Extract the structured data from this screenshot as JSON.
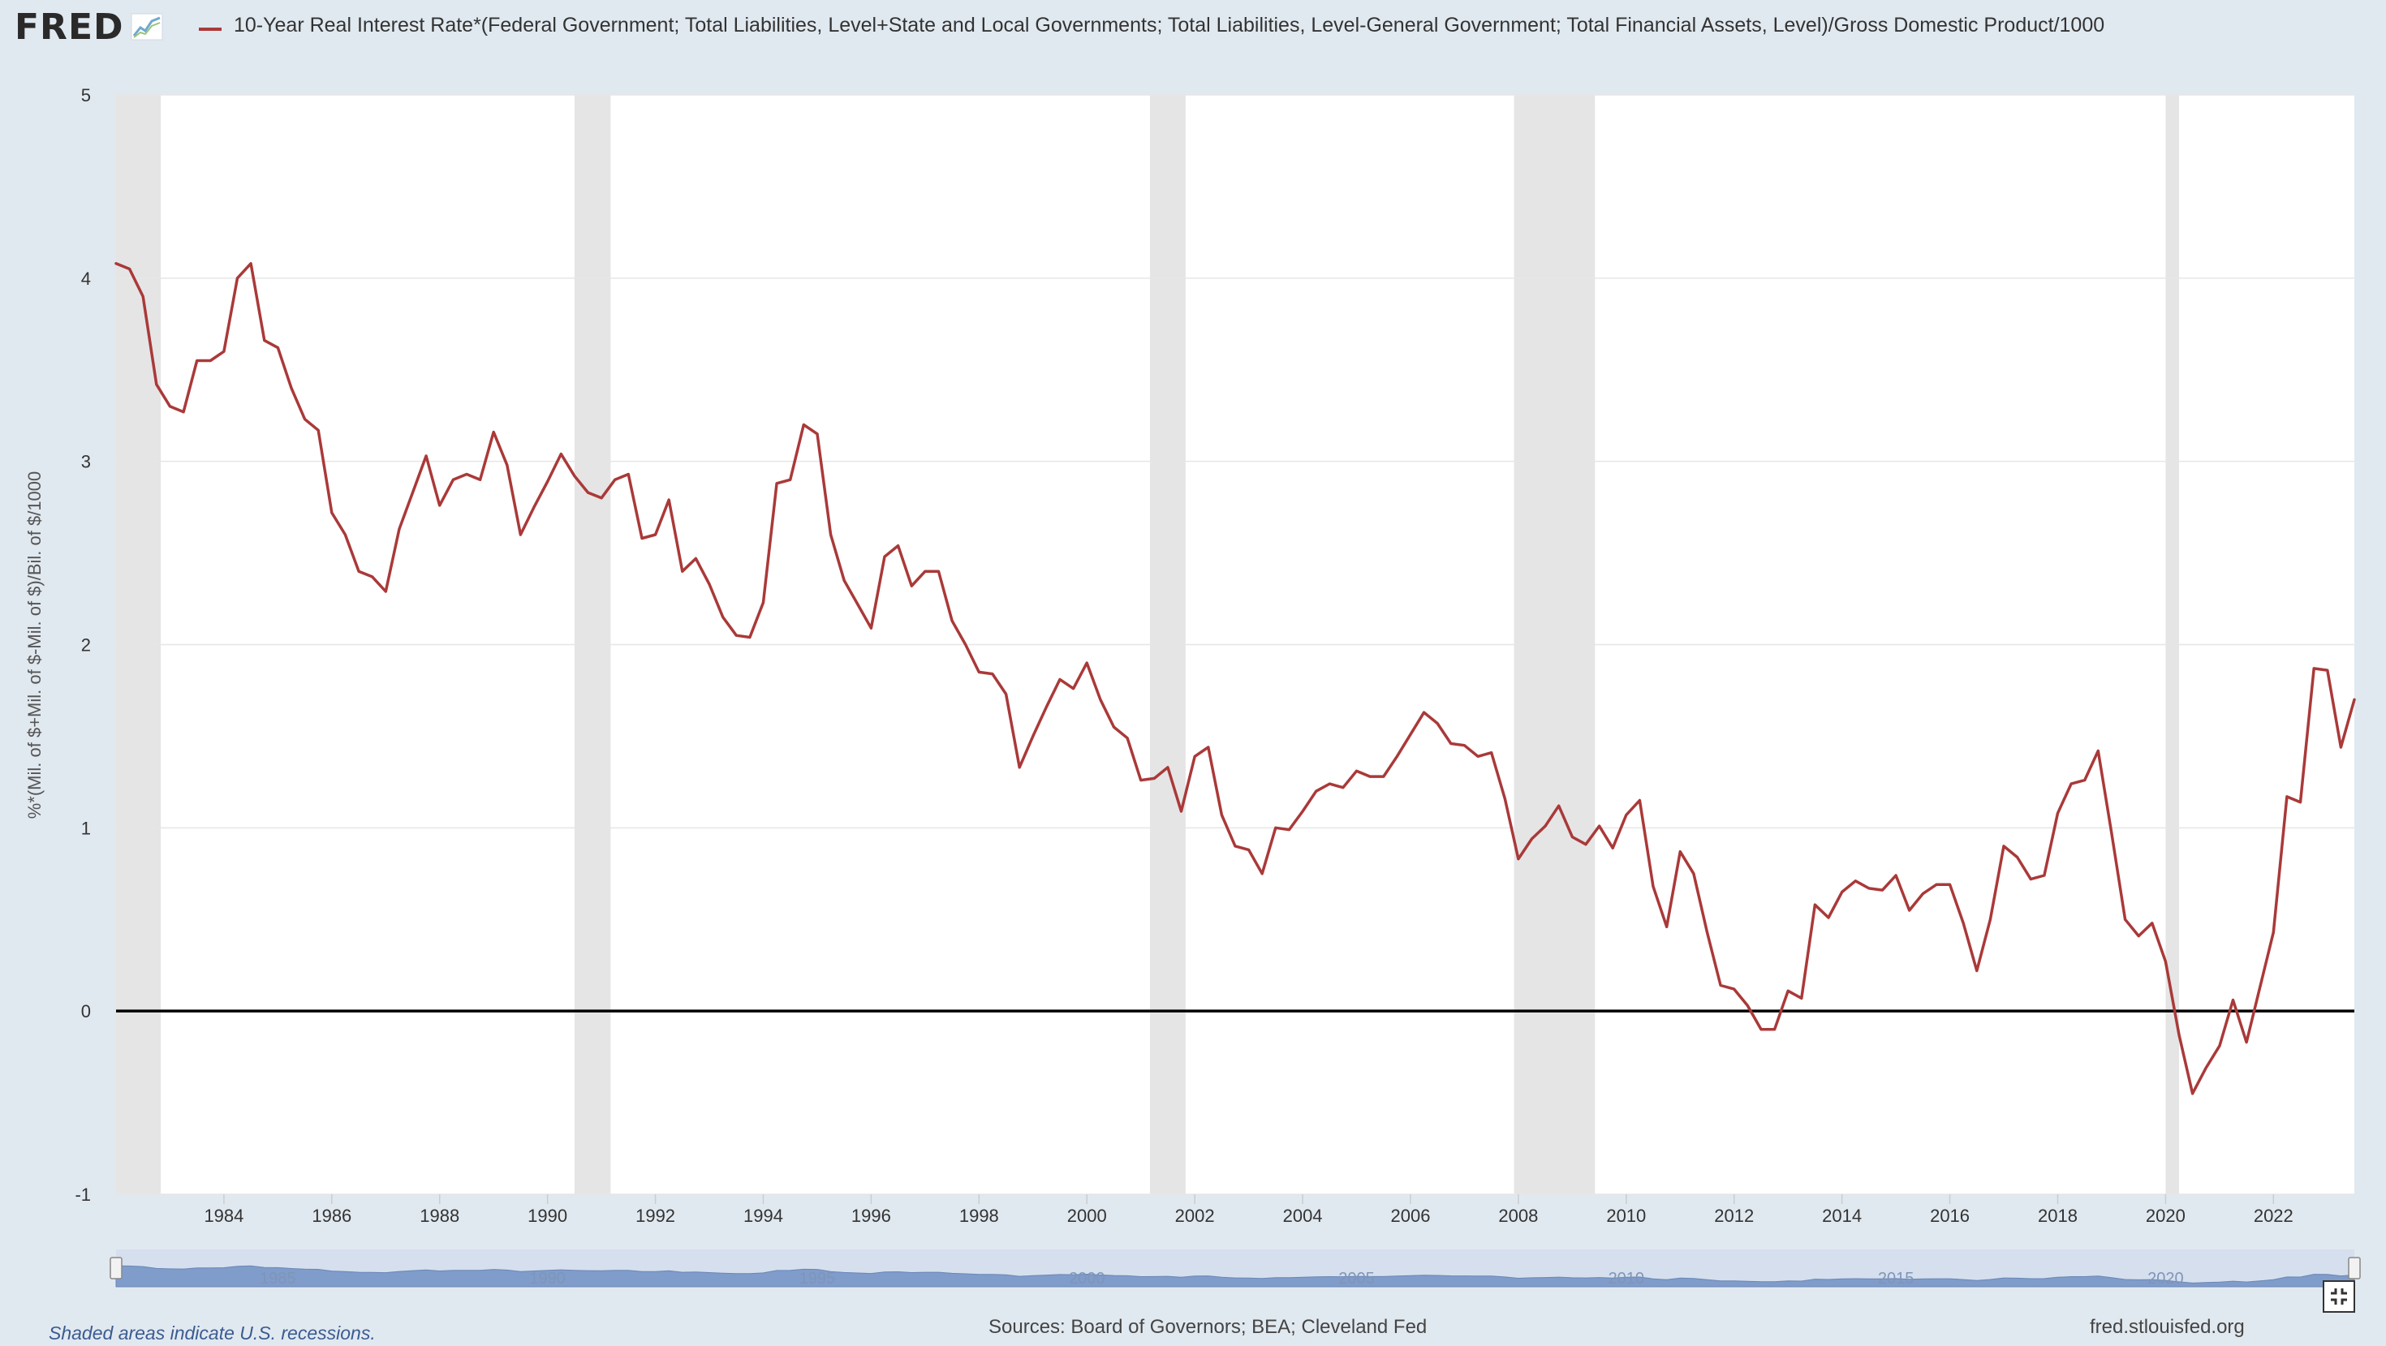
{
  "header": {
    "logo_text": "FRED",
    "logo_icon": "fred-chart-icon",
    "series_title": "10-Year Real Interest Rate*(Federal Government; Total Liabilities, Level+State and Local Governments; Total Liabilities, Level-General Government; Total Financial Assets, Level)/Gross Domestic Product/1000"
  },
  "footer": {
    "recession_note": "Shaded areas indicate U.S. recessions.",
    "sources": "Sources: Board of Governors; BEA; Cleveland Fed",
    "site": "fred.stlouisfed.org"
  },
  "navigator": {
    "year_labels": [
      "1985",
      "1990",
      "1995",
      "2000",
      "2005",
      "2010",
      "2015",
      "2020"
    ]
  },
  "fullscreen_icon": "fullscreen-icon",
  "colors": {
    "series_line": "#aa3939",
    "recession_shading": "#e5e5e5",
    "page_background": "#e1e9f0",
    "plot_background": "#ffffff",
    "navigator_fill": "#7f9ccb",
    "zero_line": "#000000"
  },
  "chart_data": {
    "type": "line",
    "title": "10-Year Real Interest Rate*(Federal Government; Total Liabilities, Level+State and Local Governments; Total Liabilities, Level-General Government; Total Financial Assets, Level)/Gross Domestic Product/1000",
    "ylabel": "%*(Mil. of $+Mil. of $-Mil. of $)/Bil. of $/1000",
    "xlabel": "",
    "xlim": [
      1982.0,
      2023.5
    ],
    "ylim": [
      -1,
      5
    ],
    "y_ticks": [
      -1,
      0,
      1,
      2,
      3,
      4,
      5
    ],
    "x_ticks": [
      1984,
      1986,
      1988,
      1990,
      1992,
      1994,
      1996,
      1998,
      2000,
      2002,
      2004,
      2006,
      2008,
      2010,
      2012,
      2014,
      2016,
      2018,
      2020,
      2022
    ],
    "grid": "horizontal",
    "recessions": [
      [
        1982.0,
        1982.83
      ],
      [
        1990.5,
        1991.17
      ],
      [
        2001.17,
        2001.83
      ],
      [
        2007.92,
        2009.42
      ],
      [
        2020.0,
        2020.25
      ]
    ],
    "series": [
      {
        "name": "10-Year Real Interest Rate*(Federal Government; Total Liabilities, Level+State and Local Governments; Total Liabilities, Level-General Government; Total Financial Assets, Level)/Gross Domestic Product/1000",
        "x": [
          1982.0,
          1982.25,
          1982.5,
          1982.75,
          1983.0,
          1983.25,
          1983.5,
          1983.75,
          1984.0,
          1984.25,
          1984.5,
          1984.75,
          1985.0,
          1985.25,
          1985.5,
          1985.75,
          1986.0,
          1986.25,
          1986.5,
          1986.75,
          1987.0,
          1987.25,
          1987.5,
          1987.75,
          1988.0,
          1988.25,
          1988.5,
          1988.75,
          1989.0,
          1989.25,
          1989.5,
          1989.75,
          1990.0,
          1990.25,
          1990.5,
          1990.75,
          1991.0,
          1991.25,
          1991.5,
          1991.75,
          1992.0,
          1992.25,
          1992.5,
          1992.75,
          1993.0,
          1993.25,
          1993.5,
          1993.75,
          1994.0,
          1994.25,
          1994.5,
          1994.75,
          1995.0,
          1995.25,
          1995.5,
          1995.75,
          1996.0,
          1996.25,
          1996.5,
          1996.75,
          1997.0,
          1997.25,
          1997.5,
          1997.75,
          1998.0,
          1998.25,
          1998.5,
          1998.75,
          1999.0,
          1999.25,
          1999.5,
          1999.75,
          2000.0,
          2000.25,
          2000.5,
          2000.75,
          2001.0,
          2001.25,
          2001.5,
          2001.75,
          2002.0,
          2002.25,
          2002.5,
          2002.75,
          2003.0,
          2003.25,
          2003.5,
          2003.75,
          2004.0,
          2004.25,
          2004.5,
          2004.75,
          2005.0,
          2005.25,
          2005.5,
          2005.75,
          2006.0,
          2006.25,
          2006.5,
          2006.75,
          2007.0,
          2007.25,
          2007.5,
          2007.75,
          2008.0,
          2008.25,
          2008.5,
          2008.75,
          2009.0,
          2009.25,
          2009.5,
          2009.75,
          2010.0,
          2010.25,
          2010.5,
          2010.75,
          2011.0,
          2011.25,
          2011.5,
          2011.75,
          2012.0,
          2012.25,
          2012.5,
          2012.75,
          2013.0,
          2013.25,
          2013.5,
          2013.75,
          2014.0,
          2014.25,
          2014.5,
          2014.75,
          2015.0,
          2015.25,
          2015.5,
          2015.75,
          2016.0,
          2016.25,
          2016.5,
          2016.75,
          2017.0,
          2017.25,
          2017.5,
          2017.75,
          2018.0,
          2018.25,
          2018.5,
          2018.75,
          2019.0,
          2019.25,
          2019.5,
          2019.75,
          2020.0,
          2020.25,
          2020.5,
          2020.75,
          2021.0,
          2021.25,
          2021.5,
          2021.75,
          2022.0,
          2022.25,
          2022.5,
          2022.75,
          2023.0,
          2023.25,
          2023.5
        ],
        "values": [
          4.08,
          4.05,
          3.9,
          3.42,
          3.3,
          3.27,
          3.55,
          3.55,
          3.6,
          4.0,
          4.08,
          3.66,
          3.62,
          3.4,
          3.23,
          3.17,
          2.72,
          2.6,
          2.4,
          2.37,
          2.29,
          2.63,
          2.83,
          3.03,
          2.76,
          2.9,
          2.93,
          2.9,
          3.16,
          2.98,
          2.6,
          2.75,
          2.89,
          3.04,
          2.92,
          2.83,
          2.8,
          2.9,
          2.93,
          2.58,
          2.6,
          2.79,
          2.4,
          2.47,
          2.33,
          2.15,
          2.05,
          2.04,
          2.23,
          2.88,
          2.9,
          3.2,
          3.15,
          2.6,
          2.35,
          2.22,
          2.09,
          2.48,
          2.54,
          2.32,
          2.4,
          2.4,
          2.13,
          2.0,
          1.85,
          1.84,
          1.73,
          1.33,
          1.5,
          1.66,
          1.81,
          1.76,
          1.9,
          1.7,
          1.55,
          1.49,
          1.26,
          1.27,
          1.33,
          1.09,
          1.39,
          1.44,
          1.07,
          0.9,
          0.88,
          0.75,
          1.0,
          0.99,
          1.09,
          1.2,
          1.24,
          1.22,
          1.31,
          1.28,
          1.28,
          1.39,
          1.51,
          1.63,
          1.57,
          1.46,
          1.45,
          1.39,
          1.41,
          1.16,
          0.83,
          0.94,
          1.01,
          1.12,
          0.95,
          0.91,
          1.01,
          0.89,
          1.07,
          1.15,
          0.68,
          0.46,
          0.87,
          0.75,
          0.43,
          0.14,
          0.12,
          0.03,
          -0.1,
          -0.1,
          0.11,
          0.07,
          0.58,
          0.51,
          0.65,
          0.71,
          0.67,
          0.66,
          0.74,
          0.55,
          0.64,
          0.69,
          0.69,
          0.48,
          0.22,
          0.5,
          0.9,
          0.84,
          0.72,
          0.74,
          1.08,
          1.24,
          1.26,
          1.42,
          0.97,
          0.5,
          0.41,
          0.48,
          0.27,
          -0.13,
          -0.45,
          -0.31,
          -0.19,
          0.06,
          -0.17,
          0.13,
          0.43,
          1.17,
          1.14,
          1.87,
          1.86,
          1.44,
          1.7
        ]
      }
    ]
  }
}
